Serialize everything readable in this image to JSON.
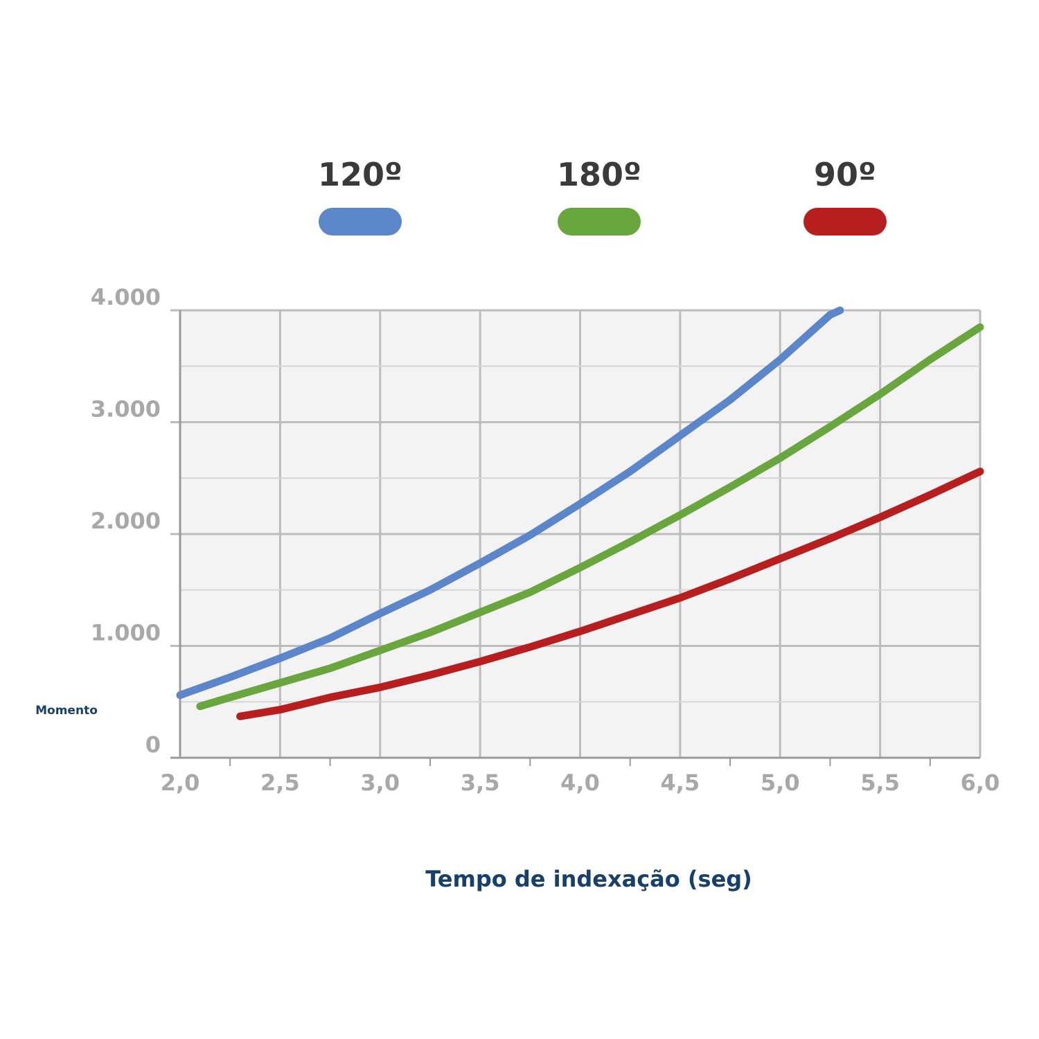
{
  "chart_data": {
    "type": "line",
    "xlabel": "Tempo de indexação (seg)",
    "ylabel": "Momento",
    "xlim": [
      2.0,
      6.0
    ],
    "ylim": [
      0,
      4000
    ],
    "x_ticks": [
      "2,0",
      "2,5",
      "3,0",
      "3,5",
      "4,0",
      "4,5",
      "5,0",
      "5,5",
      "6,0"
    ],
    "y_ticks": [
      "0",
      "1.000",
      "2.000",
      "3.000",
      "4.000"
    ],
    "grid": true,
    "legend_position": "top",
    "series": [
      {
        "name": "120º",
        "color": "#5b86c9",
        "points": [
          [
            2.0,
            560
          ],
          [
            2.25,
            720
          ],
          [
            2.5,
            890
          ],
          [
            2.75,
            1070
          ],
          [
            3.0,
            1290
          ],
          [
            3.25,
            1500
          ],
          [
            3.5,
            1740
          ],
          [
            3.75,
            1990
          ],
          [
            4.0,
            2270
          ],
          [
            4.25,
            2560
          ],
          [
            4.5,
            2880
          ],
          [
            4.75,
            3200
          ],
          [
            5.0,
            3560
          ],
          [
            5.25,
            3960
          ],
          [
            5.3,
            4000
          ]
        ]
      },
      {
        "name": "180º",
        "color": "#6aa63e",
        "points": [
          [
            2.1,
            460
          ],
          [
            2.25,
            540
          ],
          [
            2.5,
            670
          ],
          [
            2.75,
            800
          ],
          [
            3.0,
            960
          ],
          [
            3.25,
            1120
          ],
          [
            3.5,
            1300
          ],
          [
            3.75,
            1480
          ],
          [
            4.0,
            1700
          ],
          [
            4.25,
            1930
          ],
          [
            4.5,
            2170
          ],
          [
            4.75,
            2420
          ],
          [
            5.0,
            2680
          ],
          [
            5.25,
            2960
          ],
          [
            5.5,
            3250
          ],
          [
            5.75,
            3560
          ],
          [
            6.0,
            3850
          ]
        ]
      },
      {
        "name": "90º",
        "color": "#b71f1f",
        "points": [
          [
            2.3,
            370
          ],
          [
            2.5,
            430
          ],
          [
            2.75,
            540
          ],
          [
            3.0,
            630
          ],
          [
            3.25,
            740
          ],
          [
            3.5,
            860
          ],
          [
            3.75,
            990
          ],
          [
            4.0,
            1130
          ],
          [
            4.25,
            1280
          ],
          [
            4.5,
            1430
          ],
          [
            4.75,
            1600
          ],
          [
            5.0,
            1780
          ],
          [
            5.25,
            1960
          ],
          [
            5.5,
            2150
          ],
          [
            5.75,
            2350
          ],
          [
            6.0,
            2560
          ]
        ]
      }
    ]
  }
}
